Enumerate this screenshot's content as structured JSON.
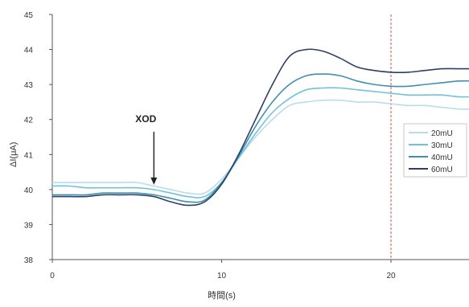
{
  "chart_data": {
    "type": "line",
    "title": "",
    "xlabel": "時間(s)",
    "ylabel": "ΔI(μA)",
    "xlim": [
      0,
      25
    ],
    "ylim": [
      38,
      45
    ],
    "xticks": [
      0,
      10,
      20
    ],
    "yticks": [
      38,
      39,
      40,
      41,
      42,
      43,
      44,
      45
    ],
    "grid": false,
    "legend_position": "right",
    "x": [
      0,
      1,
      2,
      3,
      4,
      5,
      6,
      7,
      8,
      9,
      10,
      11,
      12,
      13,
      14,
      15,
      16,
      17,
      18,
      19,
      20,
      21,
      22,
      23,
      24,
      25
    ],
    "series": [
      {
        "name": "20mU",
        "color": "#b9dcec",
        "values": [
          40.2,
          40.2,
          40.2,
          40.2,
          40.2,
          40.2,
          40.1,
          40.0,
          39.9,
          39.9,
          40.3,
          40.9,
          41.5,
          42.0,
          42.4,
          42.5,
          42.55,
          42.55,
          42.5,
          42.5,
          42.45,
          42.4,
          42.4,
          42.35,
          42.3,
          42.3
        ]
      },
      {
        "name": "30mU",
        "color": "#6ec3d8",
        "values": [
          40.1,
          40.1,
          40.05,
          40.05,
          40.05,
          40.05,
          40.0,
          39.9,
          39.8,
          39.8,
          40.2,
          40.9,
          41.6,
          42.2,
          42.6,
          42.85,
          42.9,
          42.9,
          42.85,
          42.8,
          42.75,
          42.7,
          42.7,
          42.7,
          42.65,
          42.65
        ]
      },
      {
        "name": "40mU",
        "color": "#3f8fb0",
        "values": [
          39.85,
          39.85,
          39.85,
          39.9,
          39.9,
          39.9,
          39.85,
          39.75,
          39.65,
          39.7,
          40.2,
          40.95,
          41.8,
          42.5,
          43.0,
          43.25,
          43.3,
          43.25,
          43.1,
          43.0,
          42.95,
          42.95,
          43.0,
          43.05,
          43.1,
          43.1
        ]
      },
      {
        "name": "60mU",
        "color": "#2d3f66",
        "values": [
          39.8,
          39.8,
          39.8,
          39.85,
          39.85,
          39.85,
          39.8,
          39.65,
          39.55,
          39.65,
          40.15,
          41.0,
          42.0,
          43.0,
          43.8,
          44.0,
          43.95,
          43.75,
          43.5,
          43.4,
          43.35,
          43.35,
          43.4,
          43.45,
          43.45,
          43.45
        ]
      }
    ],
    "vline": {
      "x": 20,
      "color": "#e04848"
    },
    "annotation": {
      "text": "XOD",
      "x": 6,
      "y": 40.0
    }
  }
}
